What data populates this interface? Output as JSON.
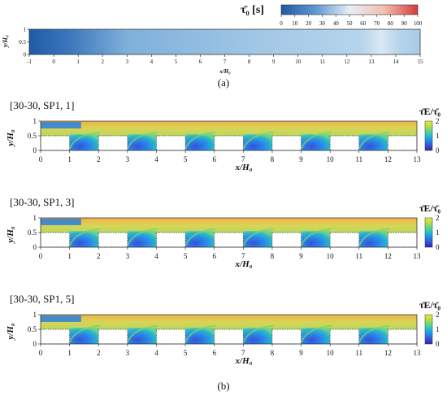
{
  "panel_a": {
    "colorbar_label": "τ̄₀ [s]",
    "colorbar_ticks": [
      "0",
      "10",
      "20",
      "30",
      "40",
      "50",
      "60",
      "70",
      "80",
      "90",
      "100"
    ],
    "ylabel": "y/H₀",
    "xlabel": "x/H₀",
    "caption": "(a)"
  },
  "panel_b": {
    "caption": "(b)",
    "colorbar_label": "τ̄E/τ̄₀",
    "colorbar_ticks": [
      "2",
      "1",
      "0"
    ],
    "ylabel": "y/H₀",
    "xlabel": "x/H₀",
    "plots": [
      {
        "title": "[30-30, SP1, 1]"
      },
      {
        "title": "[30-30, SP1, 3]"
      },
      {
        "title": "[30-30, SP1, 5]"
      }
    ]
  },
  "chart_data": [
    {
      "type": "heatmap",
      "variable": "τ̄₀ [s]",
      "x_range": [
        -1,
        15
      ],
      "y_range": [
        0,
        1
      ],
      "x_ticks": [
        "-1",
        "0",
        "1",
        "2",
        "3",
        "4",
        "5",
        "6",
        "7",
        "8",
        "9",
        "10",
        "11",
        "12",
        "13",
        "14",
        "15"
      ],
      "y_ticks": [
        "0",
        "0.5",
        "1"
      ],
      "colorbar_range": [
        0,
        100
      ],
      "colormap": [
        "#1f5aa6",
        "#5e97cf",
        "#c9dff0",
        "#f2d2c6",
        "#d43a3a"
      ],
      "profile_x": [
        -1,
        0,
        1,
        2,
        4,
        6,
        8,
        10,
        12,
        13,
        13.4,
        14,
        15
      ],
      "profile_value": [
        3,
        8,
        14,
        18,
        22,
        24,
        25,
        26,
        27,
        29,
        35,
        30,
        27
      ]
    },
    {
      "type": "heatmap",
      "variable": "τ̄E/τ̄₀",
      "x_range": [
        0,
        13
      ],
      "y_range": [
        0,
        1
      ],
      "x_ticks": [
        "0",
        "1",
        "2",
        "3",
        "4",
        "5",
        "6",
        "7",
        "8",
        "9",
        "10",
        "11",
        "12",
        "13"
      ],
      "y_ticks": [
        "0",
        "0.5",
        "1"
      ],
      "colorbar_range": [
        0,
        2
      ],
      "colormap": [
        "#3b1fb0",
        "#1f8ff0",
        "#2ac9c0",
        "#f2e53a"
      ],
      "obstacles_x": [
        [
          0,
          1
        ],
        [
          2,
          3
        ],
        [
          4,
          5
        ],
        [
          6,
          7
        ],
        [
          8,
          9
        ],
        [
          10,
          11
        ],
        [
          12,
          13
        ]
      ],
      "obstacle_top": 0.5,
      "cavities_x": [
        [
          1,
          2
        ],
        [
          3,
          4
        ],
        [
          5,
          6
        ],
        [
          7,
          8
        ],
        [
          9,
          10
        ],
        [
          11,
          12
        ]
      ],
      "series": [
        {
          "name": "[30-30, SP1, 1]",
          "upper_layer_ratio": 1.25,
          "cavity_ratio": 0.4
        },
        {
          "name": "[30-30, SP1, 3]",
          "upper_layer_ratio": 1.45,
          "cavity_ratio": 0.45
        },
        {
          "name": "[30-30, SP1, 5]",
          "upper_layer_ratio": 1.4,
          "cavity_ratio": 0.45
        }
      ]
    }
  ]
}
